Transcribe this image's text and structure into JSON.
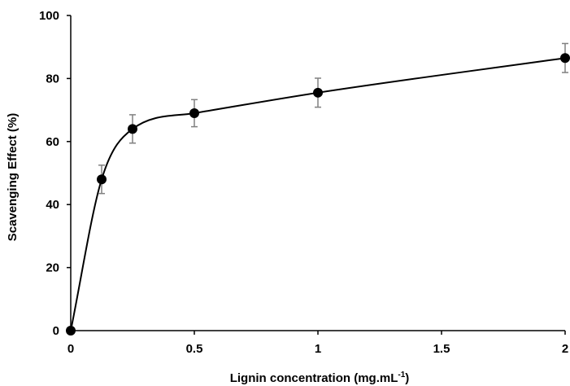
{
  "chart_data": {
    "type": "scatter",
    "x": [
      0,
      0.125,
      0.25,
      0.5,
      1,
      2
    ],
    "series": [
      {
        "values": [
          0,
          48,
          64,
          69,
          75.5,
          86.5
        ],
        "error": [
          0,
          4.5,
          4.5,
          4.3,
          4.6,
          4.6
        ]
      }
    ],
    "xlabel": "Lignin concentration (mg.mL",
    "xlabel_superscript": "-1",
    "xlabel_suffix": ")",
    "ylabel": "Scavenging Effect (%)",
    "xlim": [
      0,
      2
    ],
    "ylim": [
      0,
      100
    ],
    "xticks": [
      0,
      0.5,
      1,
      1.5,
      2
    ],
    "xtick_labels": [
      "0",
      "0.5",
      "1",
      "1.5",
      "2"
    ],
    "yticks": [
      0,
      20,
      40,
      60,
      80,
      100
    ],
    "ytick_labels": [
      "0",
      "20",
      "40",
      "60",
      "80",
      "100"
    ],
    "grid": false,
    "smooth_line": true
  }
}
